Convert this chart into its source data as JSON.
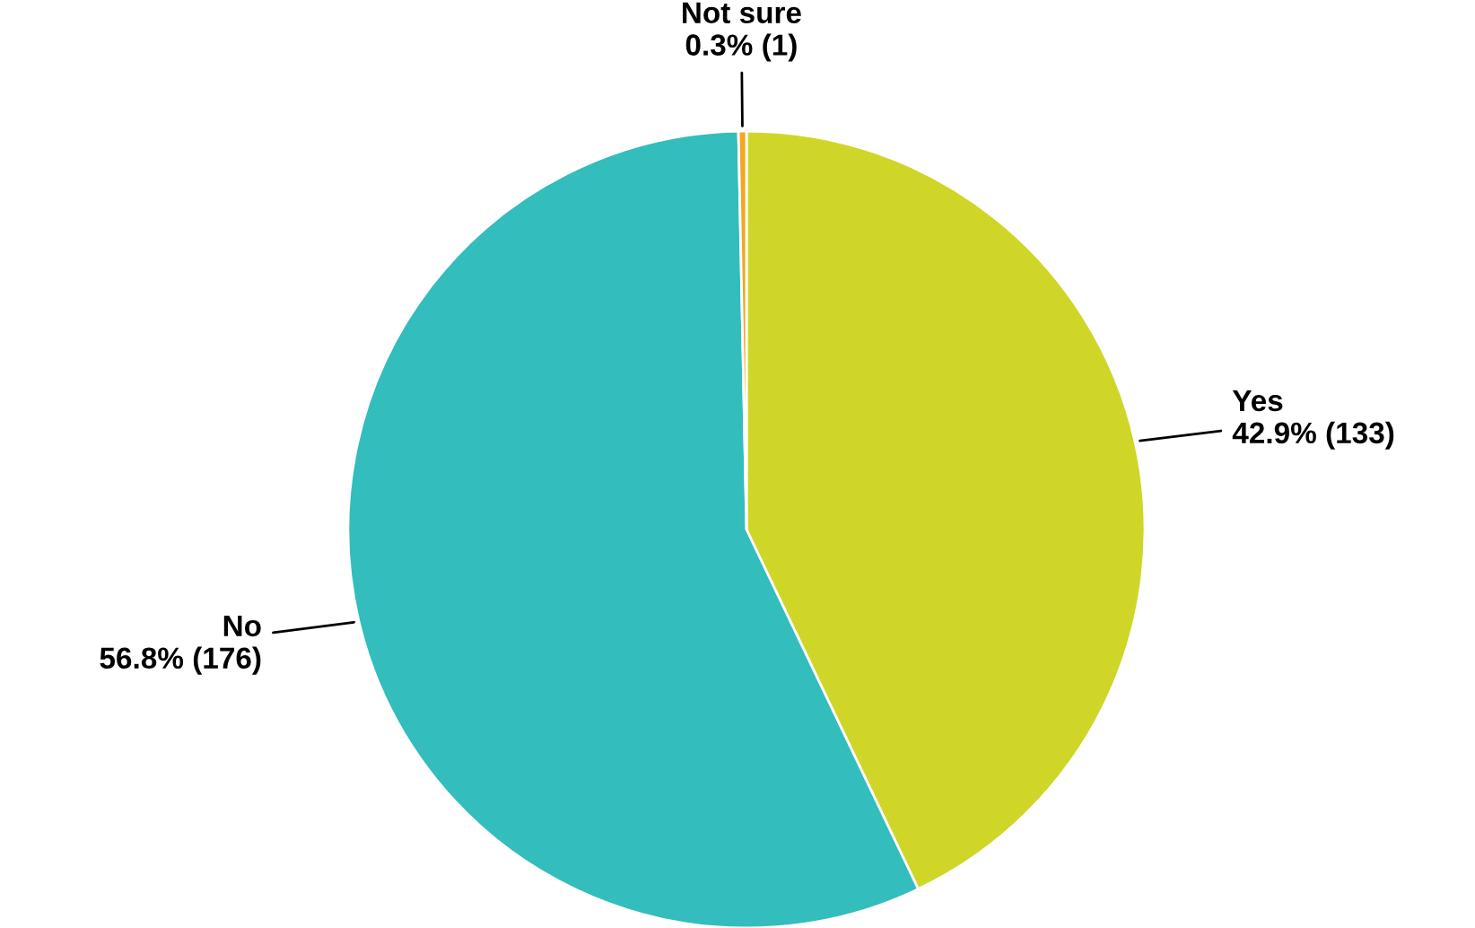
{
  "chart_data": {
    "type": "pie",
    "categories": [
      "Yes",
      "No",
      "Not sure"
    ],
    "values": [
      133,
      176,
      1
    ],
    "value_labels": [
      "42.9% (133)",
      "56.8% (176)",
      "0.3% (1)"
    ],
    "colors": [
      "#d0d628",
      "#33bdbd",
      "#f5a623"
    ],
    "legend": false
  }
}
